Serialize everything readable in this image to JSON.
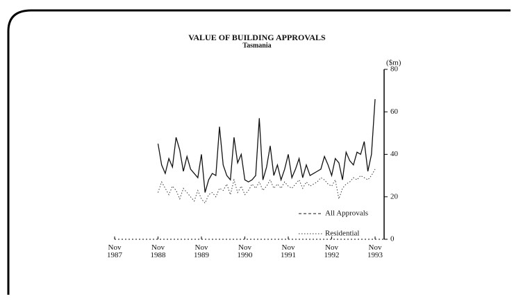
{
  "chart_data": {
    "type": "line",
    "title": "VALUE OF BUILDING APPROVALS",
    "subtitle": "Tasmania",
    "y_label": "($m)",
    "xlim": [
      "1987-11",
      "1993-11"
    ],
    "xticks": [
      {
        "value": "1987-11",
        "label": "Nov 1987"
      },
      {
        "value": "1988-11",
        "label": "Nov 1988"
      },
      {
        "value": "1989-11",
        "label": "Nov 1989"
      },
      {
        "value": "1990-11",
        "label": "Nov 1990"
      },
      {
        "value": "1991-11",
        "label": "Nov 1991"
      },
      {
        "value": "1992-11",
        "label": "Nov 1992"
      },
      {
        "value": "1993-11",
        "label": "Nov 1993"
      }
    ],
    "ylim": [
      0,
      80
    ],
    "yticks": [
      0,
      20,
      40,
      60,
      80
    ],
    "x": [
      "1988-11",
      "1988-12",
      "1989-01",
      "1989-02",
      "1989-03",
      "1989-04",
      "1989-05",
      "1989-06",
      "1989-07",
      "1989-08",
      "1989-09",
      "1989-10",
      "1989-11",
      "1989-12",
      "1990-01",
      "1990-02",
      "1990-03",
      "1990-04",
      "1990-05",
      "1990-06",
      "1990-07",
      "1990-08",
      "1990-09",
      "1990-10",
      "1990-11",
      "1990-12",
      "1991-01",
      "1991-02",
      "1991-03",
      "1991-04",
      "1991-05",
      "1991-06",
      "1991-07",
      "1991-08",
      "1991-09",
      "1991-10",
      "1991-11",
      "1991-12",
      "1992-01",
      "1992-02",
      "1992-03",
      "1992-04",
      "1992-05",
      "1992-06",
      "1992-07",
      "1992-08",
      "1992-09",
      "1992-10",
      "1992-11",
      "1992-12",
      "1993-01",
      "1993-02",
      "1993-03",
      "1993-04",
      "1993-05",
      "1993-06",
      "1993-07",
      "1993-08",
      "1993-09",
      "1993-10",
      "1993-11"
    ],
    "series": [
      {
        "name": "All Approvals",
        "color": "#111111",
        "style": "solid",
        "values": [
          45,
          35,
          31,
          38,
          34,
          48,
          42,
          32,
          39,
          33,
          31,
          29,
          40,
          22,
          28,
          31,
          30,
          53,
          35,
          30,
          28,
          48,
          36,
          40,
          28,
          27,
          28,
          30,
          57,
          28,
          34,
          44,
          30,
          35,
          28,
          33,
          40,
          29,
          33,
          38,
          29,
          35,
          30,
          31,
          32,
          33,
          39,
          35,
          30,
          38,
          36,
          28,
          41,
          37,
          35,
          41,
          40,
          46,
          32,
          40,
          66
        ]
      },
      {
        "name": "Residential",
        "color": "#333333",
        "style": "dotted",
        "values": [
          22,
          27,
          24,
          21,
          25,
          23,
          19,
          24,
          22,
          20,
          18,
          23,
          19,
          17,
          21,
          22,
          20,
          24,
          23,
          26,
          21,
          28,
          22,
          25,
          21,
          23,
          26,
          24,
          27,
          23,
          25,
          28,
          24,
          26,
          24,
          27,
          25,
          24,
          26,
          28,
          24,
          27,
          25,
          26,
          27,
          29,
          28,
          26,
          25,
          28,
          19,
          24,
          26,
          27,
          29,
          28,
          30,
          29,
          28,
          30,
          33
        ]
      }
    ]
  }
}
